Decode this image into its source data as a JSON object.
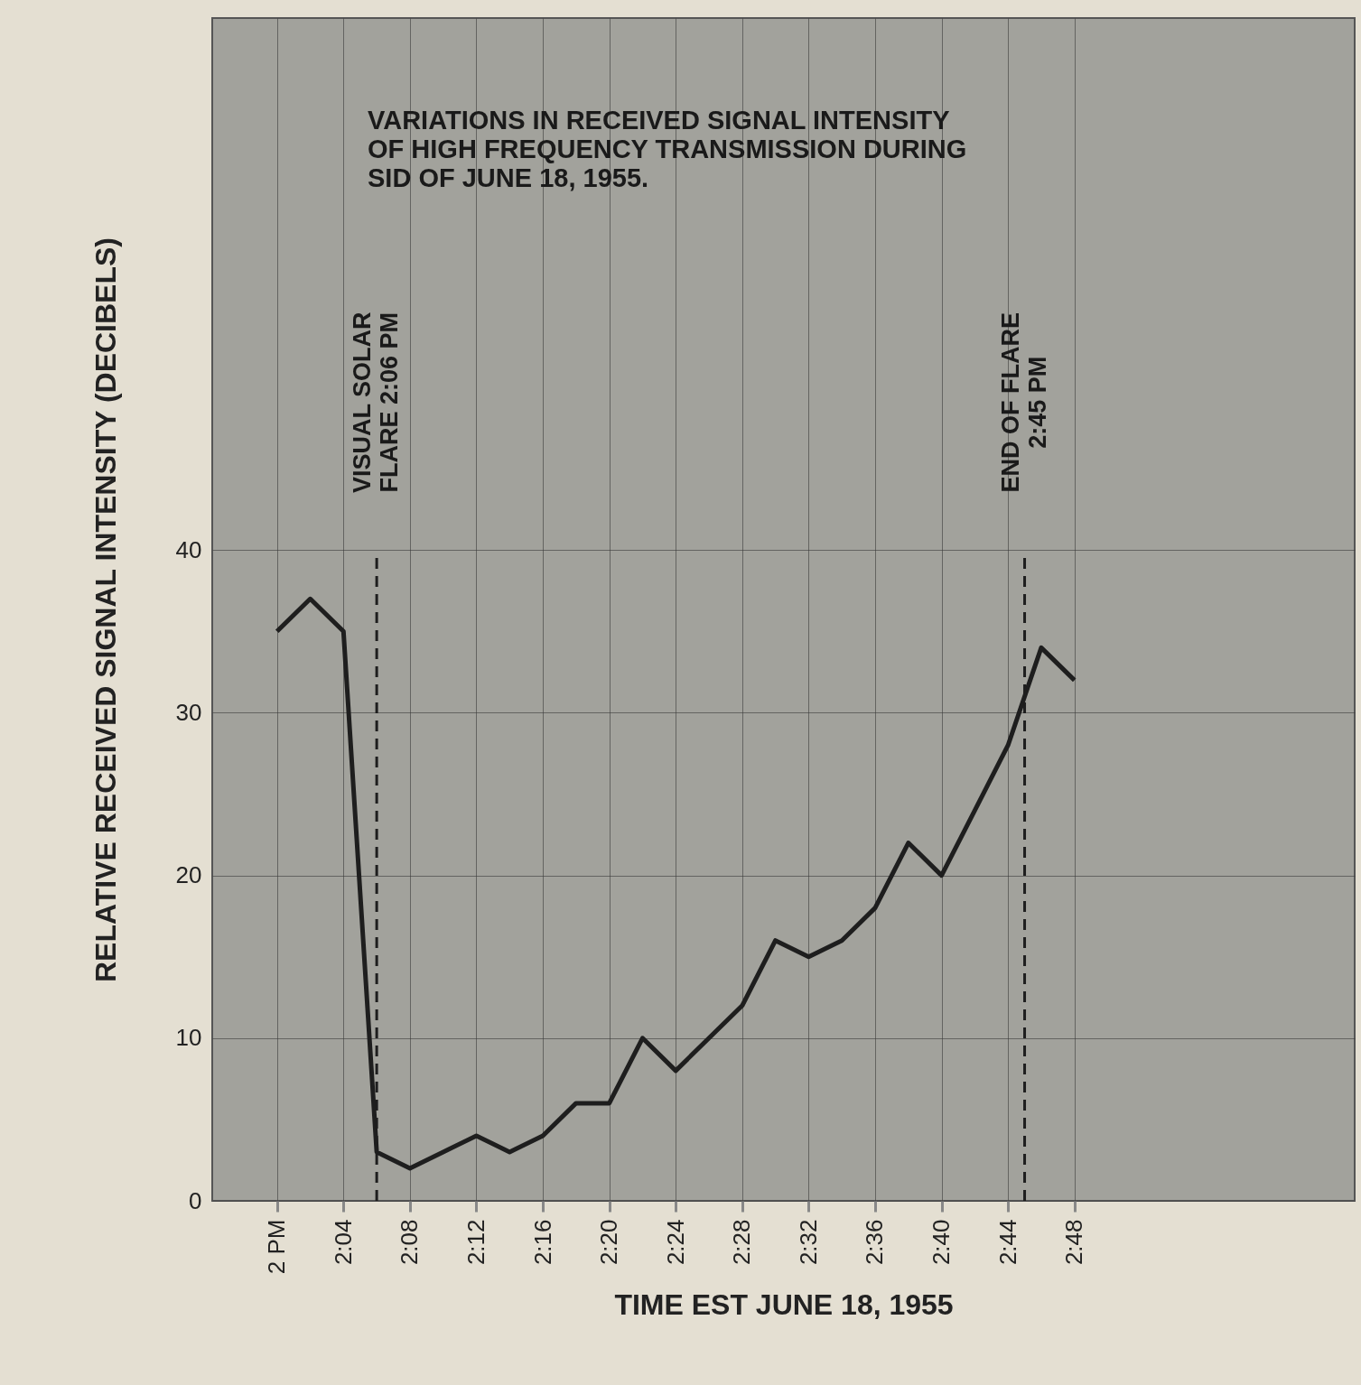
{
  "chart_data": {
    "type": "line",
    "title": "VARIATIONS IN RECEIVED SIGNAL INTENSITY\nOF HIGH FREQUENCY TRANSMISSION DURING\nSID OF JUNE 18, 1955.",
    "xlabel": "TIME EST JUNE 18, 1955",
    "ylabel": "RELATIVE RECEIVED SIGNAL INTENSITY (DECIBELS)",
    "x": [
      "1955-06-18T14:00",
      "1955-06-18T14:02",
      "1955-06-18T14:04",
      "1955-06-18T14:06",
      "1955-06-18T14:08",
      "1955-06-18T14:10",
      "1955-06-18T14:12",
      "1955-06-18T14:14",
      "1955-06-18T14:16",
      "1955-06-18T14:18",
      "1955-06-18T14:20",
      "1955-06-18T14:22",
      "1955-06-18T14:24",
      "1955-06-18T14:26",
      "1955-06-18T14:28",
      "1955-06-18T14:30",
      "1955-06-18T14:32",
      "1955-06-18T14:34",
      "1955-06-18T14:36",
      "1955-06-18T14:38",
      "1955-06-18T14:40",
      "1955-06-18T14:42",
      "1955-06-18T14:44",
      "1955-06-18T14:46",
      "1955-06-18T14:48"
    ],
    "series": [
      {
        "color": "#1e1e1e",
        "values": [
          35,
          37,
          35,
          3,
          2,
          3,
          4,
          3,
          4,
          6,
          6,
          10,
          8,
          10,
          12,
          16,
          15,
          16,
          18,
          22,
          20,
          24,
          28,
          34,
          32
        ]
      }
    ],
    "xlim": [
      "1955-06-18T13:56:06",
      "1955-06-18T15:04:52"
    ],
    "ylim": [
      0,
      72.7
    ],
    "xticks": [
      {
        "value": "1955-06-18T14:00",
        "label": "2 PM"
      },
      {
        "value": "1955-06-18T14:04",
        "label": "2:04"
      },
      {
        "value": "1955-06-18T14:08",
        "label": "2:08"
      },
      {
        "value": "1955-06-18T14:12",
        "label": "2:12"
      },
      {
        "value": "1955-06-18T14:16",
        "label": "2:16"
      },
      {
        "value": "1955-06-18T14:20",
        "label": "2:20"
      },
      {
        "value": "1955-06-18T14:24",
        "label": "2:24"
      },
      {
        "value": "1955-06-18T14:28",
        "label": "2:28"
      },
      {
        "value": "1955-06-18T14:32",
        "label": "2:32"
      },
      {
        "value": "1955-06-18T14:36",
        "label": "2:36"
      },
      {
        "value": "1955-06-18T14:40",
        "label": "2:40"
      },
      {
        "value": "1955-06-18T14:44",
        "label": "2:44"
      },
      {
        "value": "1955-06-18T14:48",
        "label": "2:48"
      }
    ],
    "yticks": [
      0,
      10,
      20,
      30,
      40
    ],
    "ref_lines": [
      {
        "axis": "x",
        "value": "1955-06-18T14:06",
        "label": "VISUAL SOLAR\nFLARE 2:06 PM",
        "line_style": "dashed"
      },
      {
        "axis": "x",
        "value": "1955-06-18T14:45",
        "label": "END OF FLARE\n2:45 PM",
        "line_style": "dashed"
      }
    ],
    "grid": true,
    "marker": "none",
    "line_style": "solid"
  }
}
